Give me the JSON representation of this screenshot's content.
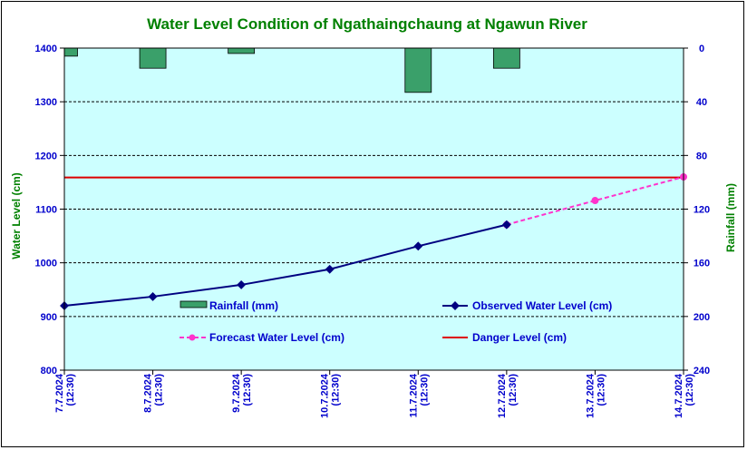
{
  "chart_data": {
    "type": "line",
    "title": "Water Level Condition of  Ngathaingchaung at Ngawun River",
    "ylabel": "Water Level (cm)",
    "y2label": "Rainfall (mm)",
    "ylim": [
      800,
      1400
    ],
    "y_ticks": [
      "800",
      "900",
      "1000",
      "1100",
      "1200",
      "1300",
      "1400"
    ],
    "y2lim": [
      240,
      0
    ],
    "y2_ticks": [
      "0",
      "40",
      "80",
      "120",
      "160",
      "200",
      "240"
    ],
    "categories": [
      {
        "date": "7.7.2024",
        "time": "(12:30)"
      },
      {
        "date": "8.7.2024",
        "time": "(12:30)"
      },
      {
        "date": "9.7.2024",
        "time": "(12:30)"
      },
      {
        "date": "10.7.2024",
        "time": "(12:30)"
      },
      {
        "date": "11.7.2024",
        "time": "(12:30)"
      },
      {
        "date": "12.7.2024",
        "time": "(12:30)"
      },
      {
        "date": "13.7.2024",
        "time": "(12:30)"
      },
      {
        "date": "14.7.2024",
        "time": "(12:30)"
      }
    ],
    "grid": true,
    "series": [
      {
        "name": "Rainfall (mm)",
        "type": "bar",
        "axis": "right",
        "color": "#3aa06a",
        "x": [
          0,
          1,
          2,
          4,
          5
        ],
        "values": [
          6,
          15,
          4,
          33,
          15
        ]
      },
      {
        "name": "Observed Water Level (cm)",
        "type": "line",
        "color": "#000080",
        "x": [
          0,
          1,
          2,
          3,
          4,
          5
        ],
        "values": [
          920,
          937,
          959,
          988,
          1031,
          1071
        ]
      },
      {
        "name": "Forecast Water Level (cm)",
        "type": "line",
        "color": "#ff33cc",
        "dashed": true,
        "x": [
          5,
          6,
          7
        ],
        "values": [
          1071,
          1116,
          1160
        ]
      },
      {
        "name": "Danger Level (cm)",
        "type": "hline",
        "color": "#dd0000",
        "value": 1159
      }
    ],
    "colors": {
      "plot_bg": "#ccffff",
      "title": "#008000",
      "left_axis": "#0000cc",
      "right_axis": "#008000",
      "x_axis": "#0000cc"
    }
  }
}
